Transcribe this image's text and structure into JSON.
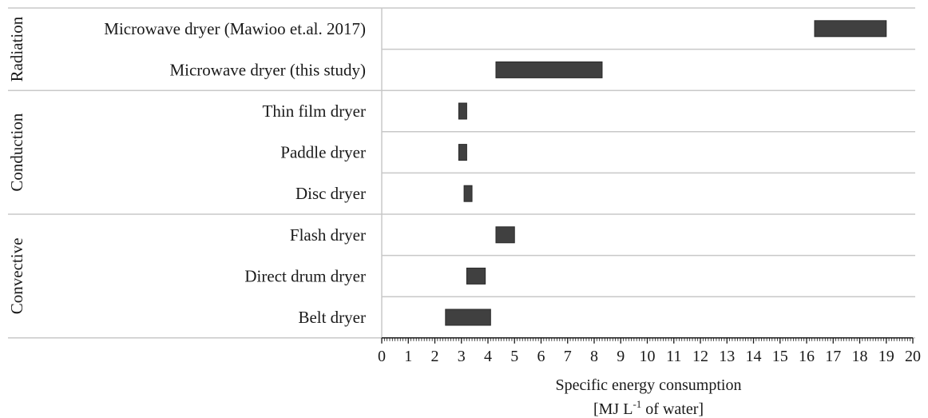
{
  "chart_data": {
    "type": "bar",
    "orientation": "horizontal",
    "bar_style": "floating-range",
    "bar_color": "#404040",
    "grid": "horizontal separators between categories",
    "xlabel": "Specific energy consumption",
    "xlabel_unit": "[MJ L-1 of water]",
    "xlabel_unit_parts": {
      "before": "[MJ L",
      "superscript": "-1",
      "after": " of water]"
    },
    "xlim": [
      0,
      20
    ],
    "xticks": [
      "0",
      "1",
      "2",
      "3",
      "4",
      "5",
      "6",
      "7",
      "8",
      "9",
      "10",
      "11",
      "12",
      "13",
      "14",
      "15",
      "16",
      "17",
      "18",
      "19",
      "20"
    ],
    "groups": [
      {
        "name": "Radiation",
        "categories": [
          "Microwave dryer (Mawioo et.al. 2017)",
          "Microwave dryer (this study)"
        ]
      },
      {
        "name": "Conduction",
        "categories": [
          "Thin film dryer",
          "Paddle dryer",
          "Disc dryer"
        ]
      },
      {
        "name": "Convective",
        "categories": [
          "Flash dryer",
          "Direct drum dryer",
          "Belt dryer"
        ]
      }
    ],
    "categories": [
      "Microwave dryer (Mawioo et.al. 2017)",
      "Microwave dryer (this study)",
      "Thin film dryer",
      "Paddle dryer",
      "Disc dryer",
      "Flash dryer",
      "Direct drum dryer",
      "Belt dryer"
    ],
    "ranges": [
      [
        16.3,
        19.0
      ],
      [
        4.3,
        8.3
      ],
      [
        2.9,
        3.2
      ],
      [
        2.9,
        3.2
      ],
      [
        3.1,
        3.4
      ],
      [
        4.3,
        5.0
      ],
      [
        3.2,
        3.9
      ],
      [
        2.4,
        4.1
      ]
    ]
  }
}
